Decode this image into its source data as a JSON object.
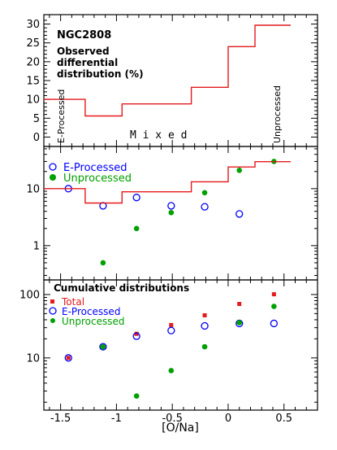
{
  "chart_data": [
    {
      "panel": "top",
      "type": "line",
      "step": true,
      "annotations": {
        "object": "NGC2808",
        "description": [
          "Observed",
          "differential",
          "distribution (%)"
        ],
        "left_region": "E-Processed",
        "middle_region": "M i x e d",
        "right_region": "Unprocessed"
      },
      "xlim": [
        -1.65,
        0.8
      ],
      "ylim": [
        -2.5,
        32.5
      ],
      "yticks": [
        0,
        5,
        10,
        15,
        20,
        25,
        30
      ],
      "yscale": "linear",
      "series": [
        {
          "color": "#e41a1c",
          "edges": [
            -1.65,
            -1.28,
            -0.95,
            -0.33,
            0.0,
            0.24,
            0.56
          ],
          "values": [
            10,
            5.6,
            8.8,
            13.2,
            24.0,
            29.7
          ]
        }
      ]
    },
    {
      "panel": "middle",
      "type": "scatter",
      "yscale": "log",
      "xlim": [
        -1.65,
        0.8
      ],
      "ylim": [
        0.25,
        55
      ],
      "yticks": [
        1,
        10
      ],
      "legend": [
        "E-Processed",
        "Unprocessed"
      ],
      "series": [
        {
          "name": "E-Processed",
          "marker": "open-circle",
          "color": "#0000ff",
          "x": [
            -1.43,
            -1.12,
            -0.82,
            -0.51,
            -0.21,
            0.1
          ],
          "y": [
            10.0,
            5.0,
            7.0,
            5.0,
            4.8,
            3.6
          ]
        },
        {
          "name": "Unprocessed",
          "marker": "filled-circle",
          "color": "#00a000",
          "x": [
            -1.12,
            -0.82,
            -0.51,
            -0.21,
            0.1,
            0.41
          ],
          "y": [
            0.5,
            2.0,
            3.8,
            8.5,
            21.0,
            30.0
          ]
        },
        {
          "marker": "step-line",
          "color": "#e41a1c",
          "edges": [
            -1.65,
            -1.28,
            -0.95,
            -0.33,
            0.0,
            0.24,
            0.56
          ],
          "values": [
            10,
            5.6,
            8.8,
            13.2,
            24.0,
            29.7
          ]
        }
      ]
    },
    {
      "panel": "bottom",
      "type": "scatter",
      "yscale": "log",
      "title": "Cumulative distributions",
      "xlabel": "[O/Na]",
      "xlim": [
        -1.65,
        0.8
      ],
      "ylim": [
        1.5,
        170
      ],
      "xticks": [
        -1.5,
        -1,
        -0.5,
        0,
        0.5
      ],
      "xticklabels": [
        "-1.5",
        "-1",
        "-0.5",
        "0",
        "0.5"
      ],
      "yticks": [
        10,
        100
      ],
      "legend": [
        "Total",
        "E-Processed",
        "Unprocessed"
      ],
      "series": [
        {
          "name": "Total",
          "marker": "filled-square",
          "color": "#e41a1c",
          "x": [
            -1.43,
            -1.12,
            -0.82,
            -0.51,
            -0.21,
            0.1,
            0.41
          ],
          "y": [
            10.0,
            15.0,
            24.0,
            33.0,
            47.0,
            71.0,
            101.0
          ]
        },
        {
          "name": "E-Processed",
          "marker": "open-circle",
          "color": "#0000ff",
          "x": [
            -1.43,
            -1.12,
            -0.82,
            -0.51,
            -0.21,
            0.1,
            0.41
          ],
          "y": [
            10.0,
            15.0,
            22.0,
            27.0,
            32.0,
            35.0,
            35.0
          ]
        },
        {
          "name": "Unprocessed",
          "marker": "filled-circle",
          "color": "#00a000",
          "x": [
            -1.12,
            -0.82,
            -0.51,
            -0.21,
            0.1,
            0.41
          ],
          "y": [
            15.0,
            2.5,
            6.3,
            15.0,
            36.0,
            65.0
          ]
        }
      ]
    }
  ]
}
